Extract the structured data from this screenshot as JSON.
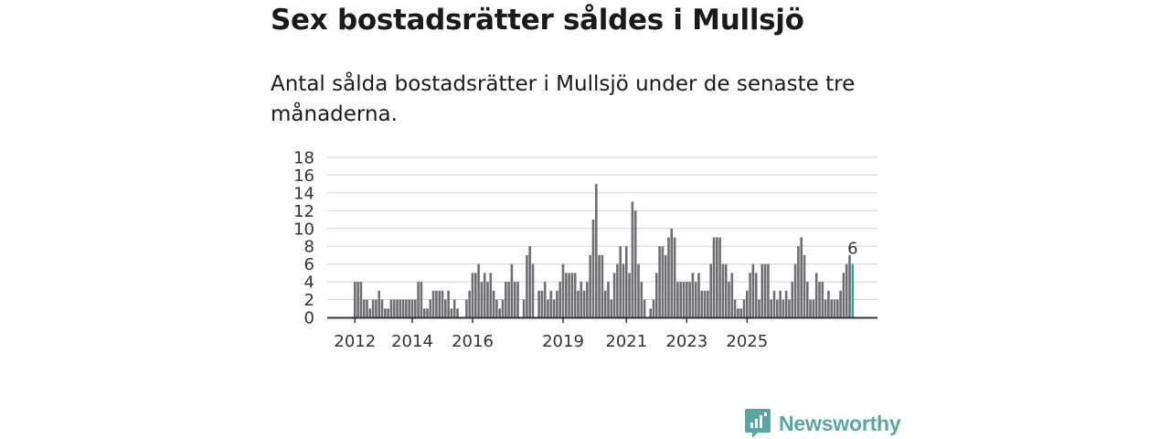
{
  "title": "Sex bostadsrätter såldes i Mullsjö",
  "subtitle": "Antal sålda bostadsrätter i Mullsjö under de senaste tre månaderna.",
  "brand": {
    "name": "Newsworthy",
    "color": "#5aa7a2"
  },
  "colors": {
    "bar": "#6f6e75",
    "highlight": "#2ba7a0",
    "axis": "#333333",
    "grid": "#d4d4d4"
  },
  "chart_data": {
    "type": "bar",
    "title": "Sex bostadsrätter såldes i Mullsjö",
    "xlabel": "",
    "ylabel": "",
    "ylim": [
      0,
      18
    ],
    "yticks": [
      "0",
      "2",
      "4",
      "6",
      "8",
      "10",
      "12",
      "14",
      "16",
      "18"
    ],
    "xticks": [
      {
        "label": "2012",
        "index": 0
      },
      {
        "label": "2014",
        "index": 19
      },
      {
        "label": "2016",
        "index": 39
      },
      {
        "label": "2019",
        "index": 69
      },
      {
        "label": "2021",
        "index": 90
      },
      {
        "label": "2023",
        "index": 110
      },
      {
        "label": "2025",
        "index": 130
      }
    ],
    "last_value_label": "6",
    "values": [
      4,
      4,
      4,
      2,
      2,
      1,
      2,
      2,
      3,
      2,
      1,
      1,
      2,
      2,
      2,
      2,
      2,
      2,
      2,
      2,
      2,
      4,
      4,
      1,
      1,
      2,
      3,
      3,
      3,
      3,
      2,
      3,
      1,
      2,
      1,
      0,
      0,
      2,
      3,
      5,
      5,
      6,
      4,
      5,
      4,
      5,
      3,
      2,
      1,
      2,
      4,
      4,
      6,
      4,
      4,
      0,
      2,
      7,
      8,
      6,
      0,
      3,
      3,
      4,
      2,
      3,
      2,
      3,
      4,
      6,
      5,
      5,
      5,
      5,
      3,
      4,
      3,
      4,
      7,
      11,
      15,
      7,
      7,
      3,
      4,
      2,
      5,
      6,
      8,
      6,
      8,
      5,
      13,
      12,
      6,
      4,
      2,
      0,
      1,
      2,
      5,
      8,
      8,
      7,
      9,
      10,
      9,
      4,
      4,
      4,
      4,
      4,
      5,
      4,
      5,
      3,
      3,
      3,
      6,
      9,
      9,
      9,
      6,
      6,
      4,
      5,
      2,
      1,
      1,
      2,
      3,
      5,
      6,
      5,
      2,
      6,
      6,
      6,
      2,
      3,
      2,
      3,
      2,
      3,
      2,
      4,
      6,
      8,
      9,
      7,
      4,
      2,
      2,
      5,
      4,
      4,
      2,
      3,
      2,
      2,
      2,
      3,
      5,
      6,
      7,
      6
    ]
  }
}
